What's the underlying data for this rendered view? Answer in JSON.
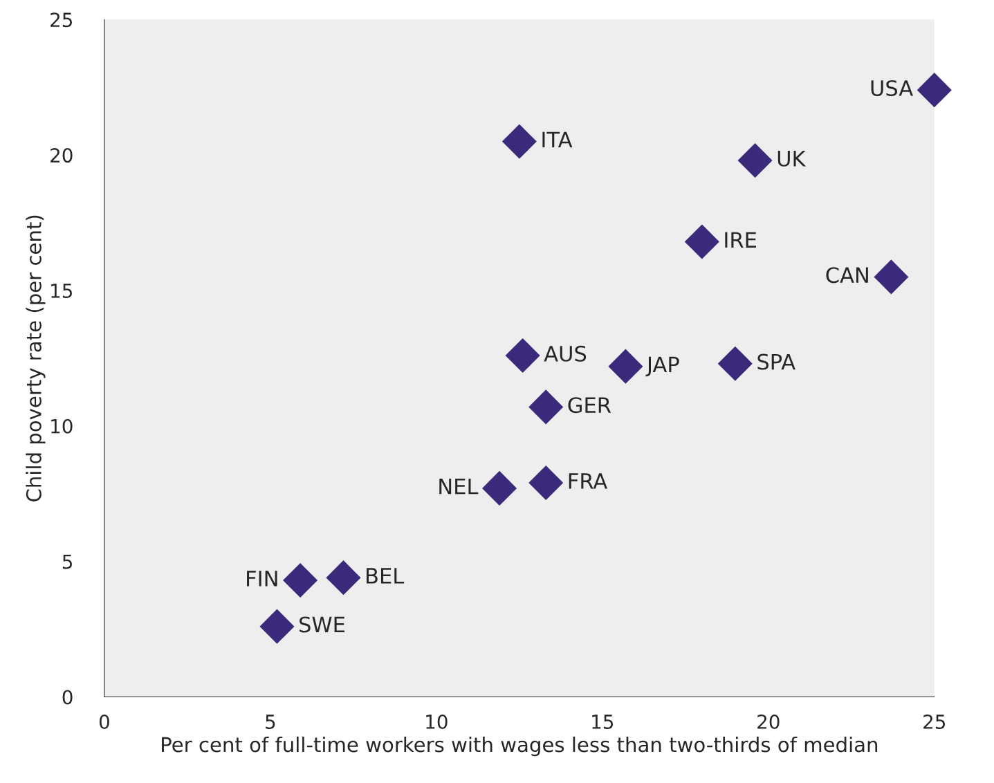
{
  "chart_data": {
    "type": "scatter",
    "xlabel": "Per cent of full-time workers with wages less than two-thirds of median",
    "ylabel": "Child poverty rate (per cent)",
    "x": [
      25.0,
      12.5,
      19.6,
      18.0,
      23.7,
      12.6,
      15.7,
      19.0,
      13.3,
      13.3,
      11.9,
      5.9,
      7.2,
      5.2
    ],
    "series": [
      {
        "color": "#3b2a7c",
        "values": [
          22.4,
          20.5,
          19.8,
          16.8,
          15.5,
          12.6,
          12.2,
          12.3,
          10.7,
          7.9,
          7.7,
          4.3,
          4.4,
          2.6
        ]
      }
    ],
    "annotations": [
      {
        "text": "USA",
        "x": 25.0,
        "y": 22.4
      },
      {
        "text": "ITA",
        "x": 12.5,
        "y": 20.5
      },
      {
        "text": "UK",
        "x": 19.6,
        "y": 19.8
      },
      {
        "text": "IRE",
        "x": 18.0,
        "y": 16.8
      },
      {
        "text": "CAN",
        "x": 23.7,
        "y": 15.5
      },
      {
        "text": "AUS",
        "x": 12.6,
        "y": 12.6
      },
      {
        "text": "JAP",
        "x": 15.7,
        "y": 12.2
      },
      {
        "text": "SPA",
        "x": 19.0,
        "y": 12.3
      },
      {
        "text": "GER",
        "x": 13.3,
        "y": 10.7
      },
      {
        "text": "FRA",
        "x": 13.3,
        "y": 7.9
      },
      {
        "text": "NEL",
        "x": 11.9,
        "y": 7.7
      },
      {
        "text": "FIN",
        "x": 5.9,
        "y": 4.3
      },
      {
        "text": "BEL",
        "x": 7.2,
        "y": 4.4
      },
      {
        "text": "SWE",
        "x": 5.2,
        "y": 2.6
      }
    ],
    "xlim": [
      0,
      25
    ],
    "ylim": [
      0,
      25
    ],
    "xticks": [
      0,
      5,
      10,
      15,
      20,
      25
    ],
    "yticks": [
      0,
      5,
      10,
      15,
      20,
      25
    ],
    "marker": "diamond",
    "grid": false,
    "legend": false
  }
}
